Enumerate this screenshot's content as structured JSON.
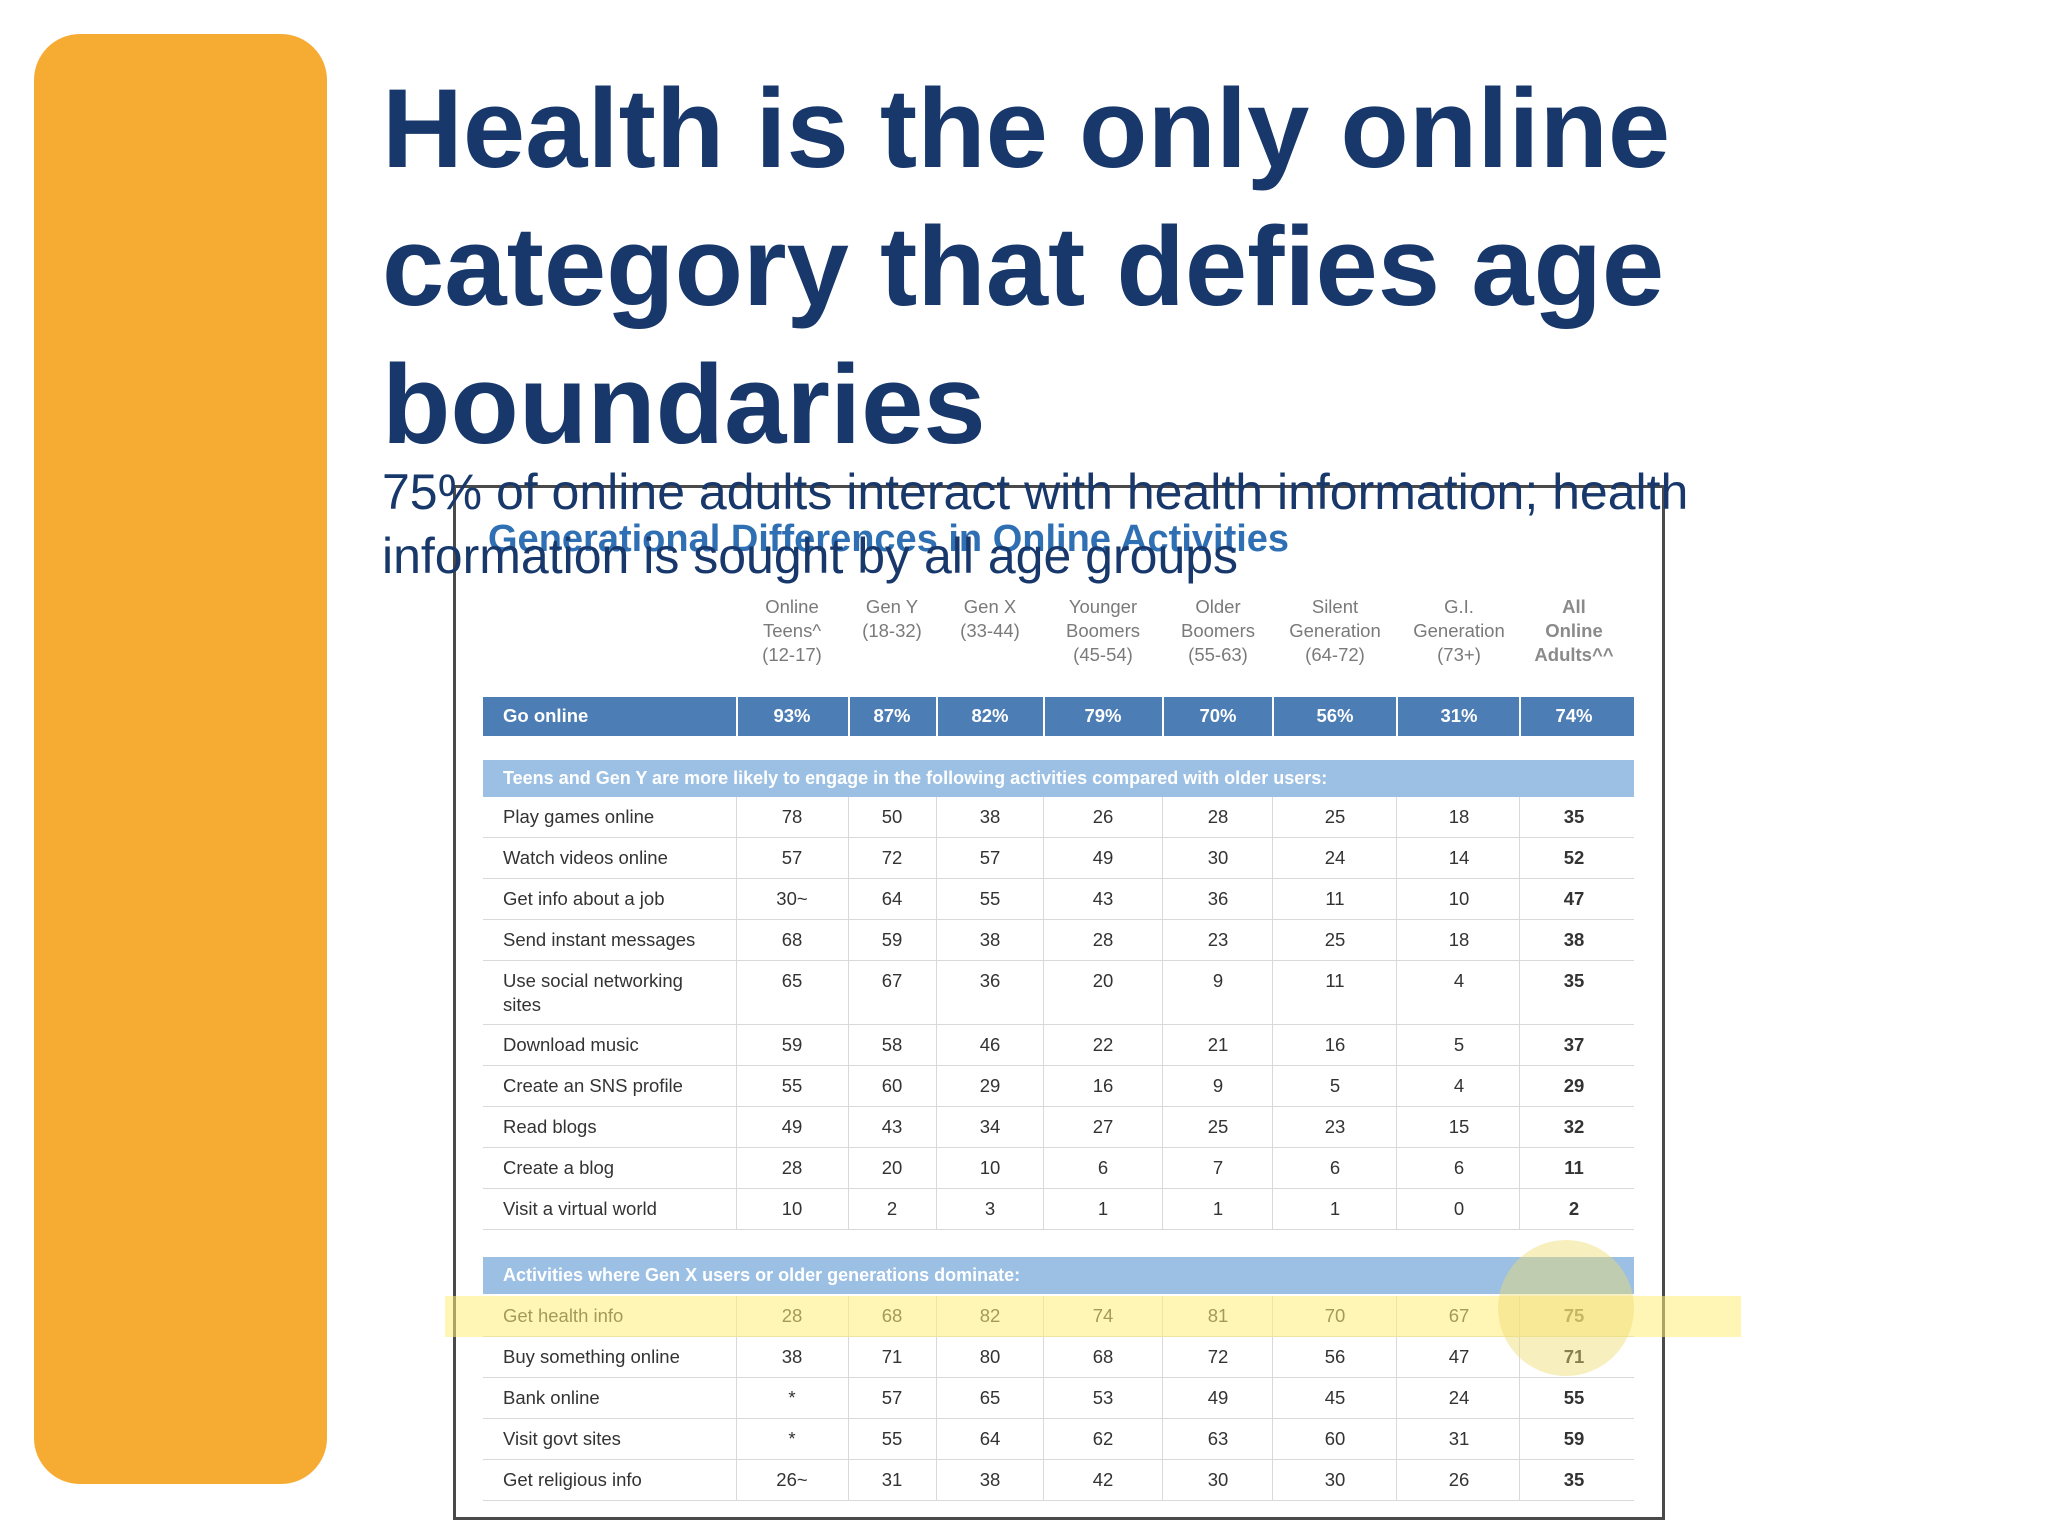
{
  "slide": {
    "title": "Health is the only online category that defies age boundaries",
    "subtitle": "75% of online adults interact with health information; health information is sought by all age groups",
    "accent_color": "#F6AC33",
    "title_color": "#18386B"
  },
  "table": {
    "title": "Generational Differences in Online Activities",
    "columns": [
      "Online\nTeens^\n(12-17)",
      "Gen Y\n(18-32)",
      "Gen X\n(33-44)",
      "Younger\nBoomers\n(45-54)",
      "Older\nBoomers\n(55-63)",
      "Silent\nGeneration\n(64-72)",
      "G.I.\nGeneration\n(73+)",
      "All\nOnline\nAdults^^"
    ],
    "go_online": {
      "label": "Go online",
      "values": [
        "93%",
        "87%",
        "82%",
        "79%",
        "70%",
        "56%",
        "31%",
        "74%"
      ]
    },
    "section1": {
      "header": "Teens and Gen Y are more likely to engage in the following activities compared with older users:",
      "rows": [
        {
          "label": "Play games online",
          "values": [
            "78",
            "50",
            "38",
            "26",
            "28",
            "25",
            "18",
            "35"
          ]
        },
        {
          "label": "Watch videos online",
          "values": [
            "57",
            "72",
            "57",
            "49",
            "30",
            "24",
            "14",
            "52"
          ]
        },
        {
          "label": "Get info about a job",
          "values": [
            "30~",
            "64",
            "55",
            "43",
            "36",
            "11",
            "10",
            "47"
          ]
        },
        {
          "label": "Send instant messages",
          "values": [
            "68",
            "59",
            "38",
            "28",
            "23",
            "25",
            "18",
            "38"
          ]
        },
        {
          "label": "Use social networking sites",
          "values": [
            "65",
            "67",
            "36",
            "20",
            "9",
            "11",
            "4",
            "35"
          ]
        },
        {
          "label": "Download music",
          "values": [
            "59",
            "58",
            "46",
            "22",
            "21",
            "16",
            "5",
            "37"
          ]
        },
        {
          "label": "Create an SNS profile",
          "values": [
            "55",
            "60",
            "29",
            "16",
            "9",
            "5",
            "4",
            "29"
          ]
        },
        {
          "label": "Read blogs",
          "values": [
            "49",
            "43",
            "34",
            "27",
            "25",
            "23",
            "15",
            "32"
          ]
        },
        {
          "label": "Create a blog",
          "values": [
            "28",
            "20",
            "10",
            "6",
            "7",
            "6",
            "6",
            "11"
          ]
        },
        {
          "label": "Visit a virtual world",
          "values": [
            "10",
            "2",
            "3",
            "1",
            "1",
            "1",
            "0",
            "2"
          ]
        }
      ]
    },
    "section2": {
      "header": "Activities where Gen X users or older generations dominate:",
      "rows": [
        {
          "label": "Get health info",
          "values": [
            "28",
            "68",
            "82",
            "74",
            "81",
            "70",
            "67",
            "75"
          ]
        },
        {
          "label": "Buy something online",
          "values": [
            "38",
            "71",
            "80",
            "68",
            "72",
            "56",
            "47",
            "71"
          ]
        },
        {
          "label": "Bank online",
          "values": [
            "*",
            "57",
            "65",
            "53",
            "49",
            "45",
            "24",
            "55"
          ]
        },
        {
          "label": "Visit govt sites",
          "values": [
            "*",
            "55",
            "64",
            "62",
            "63",
            "60",
            "31",
            "59"
          ]
        },
        {
          "label": "Get religious info",
          "values": [
            "26~",
            "31",
            "38",
            "42",
            "30",
            "30",
            "26",
            "35"
          ]
        }
      ]
    }
  }
}
